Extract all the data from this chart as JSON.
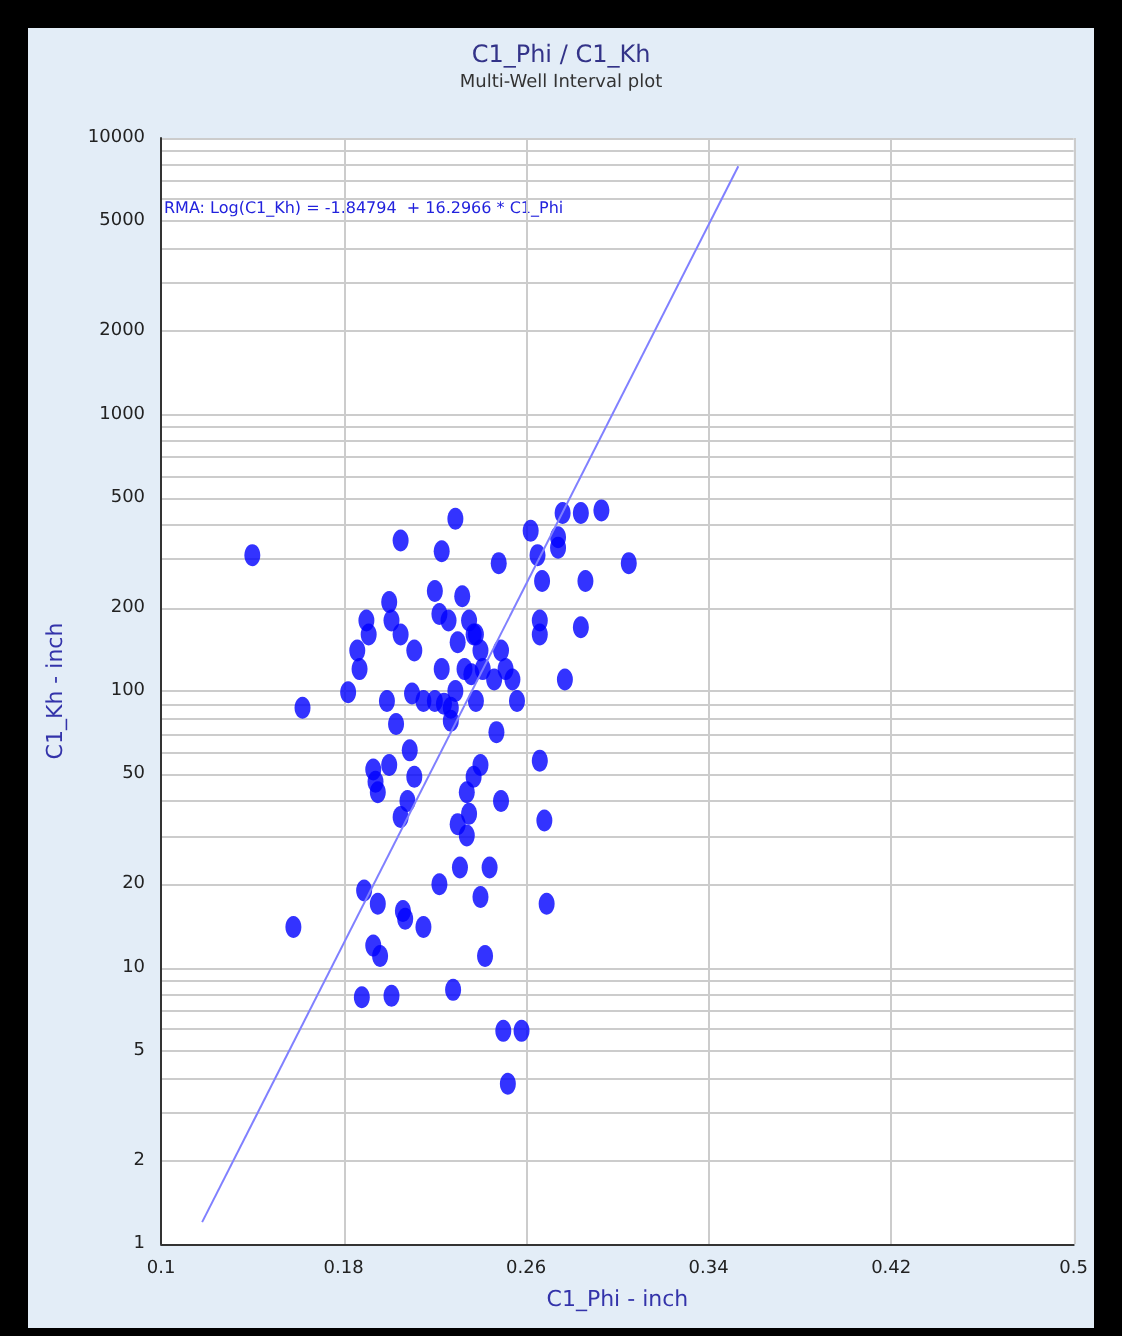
{
  "chart_data": {
    "type": "scatter",
    "title": "C1_Phi / C1_Kh",
    "subtitle": "Multi-Well Interval plot",
    "xlabel": "C1_Phi - inch",
    "ylabel": "C1_Kh - inch",
    "annotations": [
      "RMA: Log(C1_Kh) = -1.84794  + 16.2966 * C1_Phi"
    ],
    "log": "y",
    "grid": true,
    "marker": "circle",
    "xlim": [
      0.1,
      0.5
    ],
    "xticks": [
      0.1,
      0.18,
      0.26,
      0.34,
      0.42,
      0.5
    ],
    "ylim": [
      1,
      10000
    ],
    "yticks": [
      1,
      2,
      {
        "value": 3,
        "label": null
      },
      {
        "value": 4,
        "label": null
      },
      5,
      {
        "value": 6,
        "label": null
      },
      {
        "value": 7,
        "label": null
      },
      {
        "value": 8,
        "label": null
      },
      {
        "value": 9,
        "label": null
      },
      10,
      20,
      {
        "value": 30,
        "label": null
      },
      {
        "value": 40,
        "label": null
      },
      50,
      {
        "value": 60,
        "label": null
      },
      {
        "value": 70,
        "label": null
      },
      {
        "value": 80,
        "label": null
      },
      {
        "value": 90,
        "label": null
      },
      100,
      200,
      {
        "value": 300,
        "label": null
      },
      {
        "value": 400,
        "label": null
      },
      500,
      {
        "value": 600,
        "label": null
      },
      {
        "value": 700,
        "label": null
      },
      {
        "value": 800,
        "label": null
      },
      {
        "value": 900,
        "label": null
      },
      1000,
      2000,
      {
        "value": 3000,
        "label": null
      },
      {
        "value": 4000,
        "label": null
      },
      5000,
      {
        "value": 6000,
        "label": null
      },
      {
        "value": 7000,
        "label": null
      },
      {
        "value": 8000,
        "label": null
      },
      {
        "value": 9000,
        "label": null
      },
      10000
    ],
    "series": [
      {
        "color": "#0000ff",
        "x": [
          0.14,
          0.162,
          0.182,
          0.186,
          0.187,
          0.19,
          0.191,
          0.193,
          0.194,
          0.195,
          0.199,
          0.2,
          0.201,
          0.205,
          0.205,
          0.2,
          0.203,
          0.209,
          0.21,
          0.211,
          0.211,
          0.205,
          0.208,
          0.215,
          0.22,
          0.22,
          0.222,
          0.223,
          0.223,
          0.224,
          0.226,
          0.227,
          0.227,
          0.229,
          0.229,
          0.23,
          0.232,
          0.233,
          0.235,
          0.236,
          0.237,
          0.238,
          0.24,
          0.241,
          0.238,
          0.248,
          0.246,
          0.249,
          0.251,
          0.254,
          0.256,
          0.247,
          0.24,
          0.237,
          0.234,
          0.235,
          0.23,
          0.234,
          0.249,
          0.266,
          0.268,
          0.262,
          0.265,
          0.267,
          0.274,
          0.274,
          0.276,
          0.284,
          0.293,
          0.305,
          0.286,
          0.266,
          0.266,
          0.284,
          0.277,
          0.189,
          0.195,
          0.206,
          0.207,
          0.215,
          0.158,
          0.193,
          0.196,
          0.188,
          0.201,
          0.222,
          0.231,
          0.244,
          0.24,
          0.242,
          0.228,
          0.25,
          0.258,
          0.252,
          0.269
        ],
        "values": [
          310,
          87,
          99,
          140,
          120,
          180,
          160,
          52,
          47,
          43,
          92,
          210,
          180,
          350,
          160,
          54,
          76,
          61,
          98,
          49,
          140,
          35,
          40,
          92,
          230,
          92,
          190,
          120,
          320,
          90,
          180,
          87,
          78,
          420,
          100,
          150,
          220,
          120,
          180,
          115,
          160,
          92,
          140,
          120,
          160,
          290,
          110,
          140,
          120,
          110,
          92,
          71,
          54,
          49,
          43,
          36,
          33,
          30,
          40,
          56,
          34,
          380,
          310,
          250,
          360,
          330,
          440,
          440,
          450,
          290,
          250,
          180,
          160,
          170,
          110,
          19,
          17,
          16,
          15,
          14,
          14,
          12,
          11,
          7.8,
          7.9,
          20,
          23,
          23,
          18,
          11,
          8.3,
          5.9,
          5.9,
          3.8,
          17
        ]
      },
      {
        "type": "line",
        "color": "#8080ff",
        "marker": "none",
        "line_style": "solid",
        "x": [
          0.118,
          0.353
        ],
        "values": [
          1.2,
          7900
        ]
      }
    ]
  }
}
